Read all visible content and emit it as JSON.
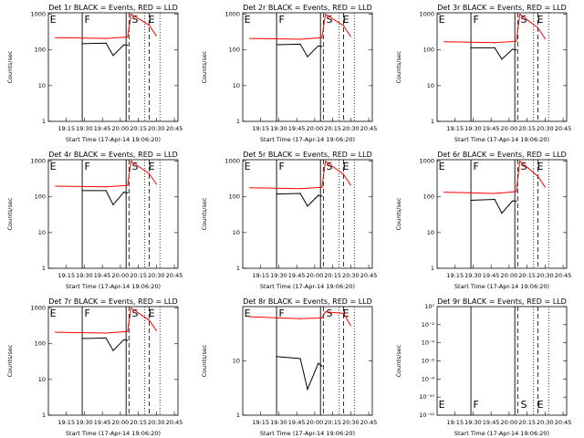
{
  "figure": {
    "time_axis_start": "19:15",
    "time_axis_end": "20:45"
  },
  "colors": {
    "events": "#000000",
    "lld": "#ff0000",
    "background": "#ffffff"
  },
  "chart_data": [
    {
      "type": "line",
      "title": "Det 1r BLACK = Events, RED = LLD",
      "xlabel": "Start Time (17-Apr-14 19:06:20)",
      "ylabel": "Counts/sec",
      "xtick_labels": [
        "19:15",
        "19:30",
        "19:45",
        "20:00",
        "20:15",
        "20:30",
        "20:45"
      ],
      "ytick_labels": [
        "1",
        "10",
        "100",
        "1000"
      ],
      "ylim": [
        1,
        1100
      ],
      "log_y": true,
      "markers": [
        "E",
        "F",
        "S",
        "E"
      ],
      "series": [
        {
          "name": "Events",
          "color": "#000000",
          "points": [
            [
              19.47,
              150
            ],
            [
              19.8,
              155
            ],
            [
              19.9,
              70
            ],
            [
              20.05,
              140
            ],
            [
              20.1,
              135
            ]
          ]
        },
        {
          "name": "LLD",
          "color": "#ff0000",
          "points": [
            [
              19.1,
              220
            ],
            [
              19.8,
              210
            ],
            [
              20.1,
              230
            ],
            [
              20.15,
              1000
            ],
            [
              20.4,
              500
            ],
            [
              20.5,
              250
            ]
          ]
        }
      ]
    },
    {
      "type": "line",
      "title": "Det 2r BLACK = Events, RED = LLD",
      "xlabel": "Start Time (17-Apr-14 19:06:20)",
      "ylabel": "Counts/sec",
      "xtick_labels": [
        "19:15",
        "19:30",
        "19:45",
        "20:00",
        "20:15",
        "20:30",
        "20:45"
      ],
      "ytick_labels": [
        "1",
        "10",
        "100",
        "1000"
      ],
      "ylim": [
        1,
        1100
      ],
      "log_y": true,
      "markers": [
        "E",
        "F",
        "S",
        "E"
      ],
      "series": [
        {
          "name": "Events",
          "color": "#000000",
          "points": [
            [
              19.47,
              140
            ],
            [
              19.8,
              145
            ],
            [
              19.9,
              65
            ],
            [
              20.05,
              130
            ],
            [
              20.1,
              125
            ]
          ]
        },
        {
          "name": "LLD",
          "color": "#ff0000",
          "points": [
            [
              19.1,
              210
            ],
            [
              19.8,
              200
            ],
            [
              20.1,
              220
            ],
            [
              20.15,
              1000
            ],
            [
              20.4,
              480
            ],
            [
              20.5,
              240
            ]
          ]
        }
      ]
    },
    {
      "type": "line",
      "title": "Det 3r BLACK = Events, RED = LLD",
      "xlabel": "Start Time (17-Apr-14 19:06:20)",
      "ylabel": "Counts/sec",
      "xtick_labels": [
        "19:15",
        "19:30",
        "19:45",
        "20:00",
        "20:15",
        "20:30",
        "20:45"
      ],
      "ytick_labels": [
        "1",
        "10",
        "100",
        "1000"
      ],
      "ylim": [
        1,
        1100
      ],
      "log_y": true,
      "markers": [
        "E",
        "F",
        "S",
        "E"
      ],
      "series": [
        {
          "name": "Events",
          "color": "#000000",
          "points": [
            [
              19.47,
              115
            ],
            [
              19.8,
              115
            ],
            [
              19.9,
              55
            ],
            [
              20.05,
              105
            ],
            [
              20.1,
              100
            ]
          ]
        },
        {
          "name": "LLD",
          "color": "#ff0000",
          "points": [
            [
              19.1,
              170
            ],
            [
              19.8,
              160
            ],
            [
              20.1,
              175
            ],
            [
              20.15,
              1000
            ],
            [
              20.4,
              420
            ],
            [
              20.5,
              210
            ]
          ]
        }
      ]
    },
    {
      "type": "line",
      "title": "Det 4r BLACK = Events, RED = LLD",
      "xlabel": "Start Time (17-Apr-14 19:06:20)",
      "ylabel": "Counts/sec",
      "xtick_labels": [
        "19:15",
        "19:30",
        "19:45",
        "20:00",
        "20:15",
        "20:30",
        "20:45"
      ],
      "ytick_labels": [
        "1",
        "10",
        "100",
        "1000"
      ],
      "ylim": [
        1,
        1100
      ],
      "log_y": true,
      "markers": [
        "E",
        "F",
        "S",
        "E"
      ],
      "series": [
        {
          "name": "Events",
          "color": "#000000",
          "points": [
            [
              19.47,
              150
            ],
            [
              19.8,
              150
            ],
            [
              19.9,
              60
            ],
            [
              20.05,
              135
            ],
            [
              20.1,
              130
            ]
          ]
        },
        {
          "name": "LLD",
          "color": "#ff0000",
          "points": [
            [
              19.1,
              200
            ],
            [
              19.8,
              190
            ],
            [
              20.1,
              210
            ],
            [
              20.15,
              1000
            ],
            [
              20.4,
              450
            ],
            [
              20.5,
              230
            ]
          ]
        }
      ]
    },
    {
      "type": "line",
      "title": "Det 5r BLACK = Events, RED = LLD",
      "xlabel": "Start Time (17-Apr-14 19:06:20)",
      "ylabel": "Counts/sec",
      "xtick_labels": [
        "19:15",
        "19:30",
        "19:45",
        "20:00",
        "20:15",
        "20:30",
        "20:45"
      ],
      "ytick_labels": [
        "1",
        "10",
        "100",
        "1000"
      ],
      "ylim": [
        1,
        1100
      ],
      "log_y": true,
      "markers": [
        "E",
        "F",
        "S",
        "E"
      ],
      "series": [
        {
          "name": "Events",
          "color": "#000000",
          "points": [
            [
              19.47,
              120
            ],
            [
              19.8,
              125
            ],
            [
              19.9,
              55
            ],
            [
              20.05,
              110
            ],
            [
              20.1,
              105
            ]
          ]
        },
        {
          "name": "LLD",
          "color": "#ff0000",
          "points": [
            [
              19.1,
              180
            ],
            [
              19.8,
              170
            ],
            [
              20.1,
              185
            ],
            [
              20.15,
              1000
            ],
            [
              20.4,
              430
            ],
            [
              20.5,
              215
            ]
          ]
        }
      ]
    },
    {
      "type": "line",
      "title": "Det 6r BLACK = Events, RED = LLD",
      "xlabel": "Start Time (17-Apr-14 19:06:20)",
      "ylabel": "Counts/sec",
      "xtick_labels": [
        "19:15",
        "19:30",
        "19:45",
        "20:00",
        "20:15",
        "20:30",
        "20:45"
      ],
      "ytick_labels": [
        "1",
        "10",
        "100",
        "1000"
      ],
      "ylim": [
        1,
        1100
      ],
      "log_y": true,
      "markers": [
        "E",
        "F",
        "S",
        "E"
      ],
      "series": [
        {
          "name": "Events",
          "color": "#000000",
          "points": [
            [
              19.47,
              80
            ],
            [
              19.8,
              85
            ],
            [
              19.9,
              35
            ],
            [
              20.05,
              78
            ],
            [
              20.1,
              75
            ]
          ]
        },
        {
          "name": "LLD",
          "color": "#ff0000",
          "points": [
            [
              19.1,
              135
            ],
            [
              19.8,
              125
            ],
            [
              20.1,
              140
            ],
            [
              20.15,
              1000
            ],
            [
              20.4,
              380
            ],
            [
              20.5,
              190
            ]
          ]
        }
      ]
    },
    {
      "type": "line",
      "title": "Det 7r BLACK = Events, RED = LLD",
      "xlabel": "Start Time (17-Apr-14 19:06:20)",
      "ylabel": "Counts/sec",
      "xtick_labels": [
        "19:15",
        "19:30",
        "19:45",
        "20:00",
        "20:15",
        "20:30",
        "20:45"
      ],
      "ytick_labels": [
        "1",
        "10",
        "100",
        "1000"
      ],
      "ylim": [
        1,
        1100
      ],
      "log_y": true,
      "markers": [
        "E",
        "F",
        "S",
        "E"
      ],
      "series": [
        {
          "name": "Events",
          "color": "#000000",
          "points": [
            [
              19.47,
              140
            ],
            [
              19.8,
              145
            ],
            [
              19.9,
              65
            ],
            [
              20.05,
              130
            ],
            [
              20.1,
              125
            ]
          ]
        },
        {
          "name": "LLD",
          "color": "#ff0000",
          "points": [
            [
              19.1,
              210
            ],
            [
              19.8,
              200
            ],
            [
              20.1,
              220
            ],
            [
              20.15,
              1000
            ],
            [
              20.4,
              460
            ],
            [
              20.5,
              235
            ]
          ]
        }
      ]
    },
    {
      "type": "line",
      "title": "Det 8r BLACK = Events, RED = LLD",
      "xlabel": "Start Time (17-Apr-14 19:06:20)",
      "ylabel": "Counts/sec",
      "xtick_labels": [
        "19:15",
        "19:30",
        "19:45",
        "20:00",
        "20:15",
        "20:30",
        "20:45"
      ],
      "ytick_labels": [
        "1",
        "10"
      ],
      "ylim": [
        1,
        100
      ],
      "log_y": true,
      "markers": [
        "E",
        "F",
        "S",
        "E"
      ],
      "series": [
        {
          "name": "Events",
          "color": "#000000",
          "points": [
            [
              19.47,
              12
            ],
            [
              19.8,
              11
            ],
            [
              19.9,
              3
            ],
            [
              20.05,
              9
            ],
            [
              20.1,
              8
            ]
          ]
        },
        {
          "name": "LLD",
          "color": "#ff0000",
          "points": [
            [
              19.1,
              65
            ],
            [
              19.8,
              60
            ],
            [
              20.1,
              62
            ],
            [
              20.15,
              80
            ],
            [
              20.4,
              75
            ],
            [
              20.5,
              45
            ]
          ]
        }
      ]
    },
    {
      "type": "line",
      "title": "Det 9r BLACK = Events, RED = LLD",
      "xlabel": "Start Time (17-Apr-14 19:06:20)",
      "ylabel": "Counts/sec",
      "xtick_labels": [
        "19:15",
        "19:30",
        "19:45",
        "20:00",
        "20:15",
        "20:30",
        "20:45"
      ],
      "ytick_labels": [
        "10⁻¹²",
        "10⁻¹⁰",
        "10⁻⁸",
        "10⁻⁶",
        "10⁻⁴",
        "10⁻²",
        "10⁰"
      ],
      "ylim": [
        1e-12,
        1
      ],
      "log_y": true,
      "markers": [
        "E",
        "F",
        "S",
        "E"
      ],
      "series": []
    }
  ]
}
